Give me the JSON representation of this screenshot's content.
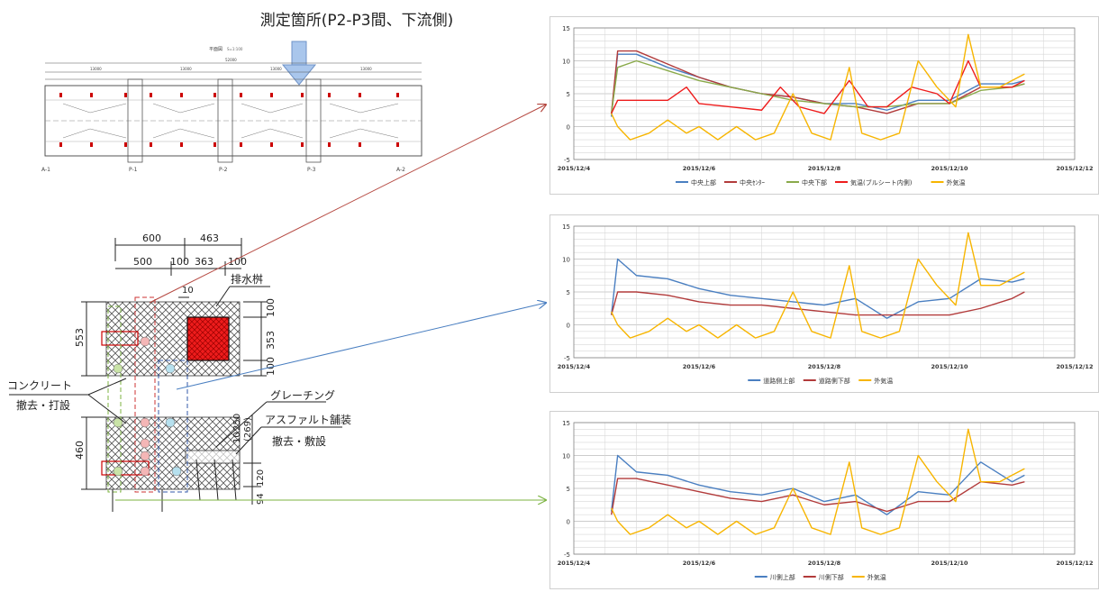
{
  "title": "測定箇所(P2-P3間、下流側)",
  "colors": {
    "blue": "#4a7fc1",
    "darkred": "#b23b3b",
    "green": "#8aaa4a",
    "red": "#ee1c1c",
    "yellow": "#f7b500",
    "arrow_red": "#b3443c",
    "arrow_blue": "#4a7fc1",
    "arrow_green": "#7cb342",
    "grate": "#ee1c1c"
  },
  "plan": {
    "label": "平面図",
    "scale": "S=1:100",
    "support_labels": [
      "A-1",
      "P-1",
      "P-2",
      "P-3",
      "A-2"
    ],
    "span_dims": [
      "13000",
      "13000",
      "13000",
      "13000"
    ],
    "total_dim": "52000"
  },
  "section": {
    "dims_top": [
      "600",
      "463"
    ],
    "dims_mid": [
      "500",
      "100",
      "363",
      "100"
    ],
    "dim_10": "10",
    "dim_553": "553",
    "dims_right": [
      "100",
      "353",
      "100"
    ],
    "dim_460": "460",
    "dims_lower_right": [
      "10",
      "250",
      "(269)",
      "120",
      "94"
    ],
    "label_drain": "排水桝",
    "label_concrete": "コンクリート",
    "label_concrete_sub": "撤去・打設",
    "label_grating": "グレーチング",
    "label_asphalt": "アスファルト舗装",
    "label_asphalt_sub": "撤去・敷設"
  },
  "chart_data": [
    {
      "type": "line",
      "x_ticks": [
        "2015/12/4",
        "2015/12/6",
        "2015/12/8",
        "2015/12/10",
        "2015/12/12"
      ],
      "y_ticks": [
        -5,
        0,
        5,
        10,
        15
      ],
      "ylim": [
        -5,
        15
      ],
      "xlim": [
        4,
        12
      ],
      "grid": true,
      "legend_position": "bottom",
      "series": [
        {
          "name": "中央上部",
          "color": "#4a7fc1",
          "x": [
            4.6,
            4.7,
            5.0,
            5.5,
            6.0,
            6.5,
            7.0,
            7.5,
            8.0,
            8.5,
            9.0,
            9.5,
            10.0,
            10.5,
            11.0,
            11.2
          ],
          "values": [
            1.5,
            11,
            11,
            9,
            7.5,
            6,
            5,
            4.5,
            3.5,
            3.5,
            2.5,
            4,
            4,
            6.5,
            6.5,
            7
          ]
        },
        {
          "name": "中央ｾﾝﾀｰ",
          "color": "#b23b3b",
          "x": [
            4.6,
            4.7,
            5.0,
            5.5,
            6.0,
            6.5,
            7.0,
            7.5,
            8.0,
            8.5,
            9.0,
            9.5,
            10.0,
            10.5,
            11.0,
            11.2
          ],
          "values": [
            2,
            11.5,
            11.5,
            9.5,
            7.5,
            6,
            5,
            4.5,
            3.5,
            3,
            2,
            3.5,
            3.5,
            6,
            6,
            6.5
          ]
        },
        {
          "name": "中央下部",
          "color": "#8aaa4a",
          "x": [
            4.6,
            4.7,
            5.0,
            5.5,
            6.0,
            6.5,
            7.0,
            7.5,
            8.0,
            8.5,
            9.0,
            9.5,
            10.0,
            10.5,
            11.0,
            11.2
          ],
          "values": [
            2,
            9,
            10,
            8.5,
            7,
            6,
            5,
            4,
            3.5,
            3,
            3,
            3.5,
            3.5,
            5.5,
            6,
            6.5
          ]
        },
        {
          "name": "気温(ブルシート内側)",
          "color": "#ee1c1c",
          "x": [
            4.6,
            4.7,
            5.0,
            5.5,
            5.8,
            6.0,
            6.5,
            7.0,
            7.3,
            7.6,
            8.0,
            8.4,
            8.7,
            9.0,
            9.4,
            9.8,
            10.0,
            10.3,
            10.5,
            11.0,
            11.2
          ],
          "values": [
            2,
            4,
            4,
            4,
            6,
            3.5,
            3,
            2.5,
            6,
            3,
            2,
            7,
            3,
            3,
            6,
            5,
            3.5,
            10,
            6,
            6,
            7
          ]
        },
        {
          "name": "外気温",
          "color": "#f7b500",
          "x": [
            4.6,
            4.7,
            4.9,
            5.2,
            5.5,
            5.8,
            6.0,
            6.3,
            6.6,
            6.9,
            7.2,
            7.5,
            7.8,
            8.1,
            8.4,
            8.6,
            8.9,
            9.2,
            9.5,
            9.8,
            10.1,
            10.3,
            10.5,
            10.8,
            11.0,
            11.2
          ],
          "values": [
            2,
            0,
            -2,
            -1,
            1,
            -1,
            0,
            -2,
            0,
            -2,
            -1,
            5,
            -1,
            -2,
            9,
            -1,
            -2,
            -1,
            10,
            6,
            3,
            14,
            6,
            6,
            7,
            8
          ]
        }
      ]
    },
    {
      "type": "line",
      "x_ticks": [
        "2015/12/4",
        "2015/12/6",
        "2015/12/8",
        "2015/12/10",
        "2015/12/12"
      ],
      "y_ticks": [
        -5,
        0,
        5,
        10,
        15
      ],
      "ylim": [
        -5,
        15
      ],
      "xlim": [
        4,
        12
      ],
      "grid": true,
      "legend_position": "bottom",
      "series": [
        {
          "name": "道路側上部",
          "color": "#4a7fc1",
          "x": [
            4.6,
            4.7,
            5.0,
            5.5,
            6.0,
            6.5,
            7.0,
            7.5,
            8.0,
            8.5,
            9.0,
            9.5,
            10.0,
            10.5,
            11.0,
            11.2
          ],
          "values": [
            1.5,
            10,
            7.5,
            7,
            5.5,
            4.5,
            4,
            3.5,
            3,
            4,
            1,
            3.5,
            4,
            7,
            6.5,
            7
          ]
        },
        {
          "name": "道路側下部",
          "color": "#b23b3b",
          "x": [
            4.6,
            4.7,
            5.0,
            5.5,
            6.0,
            6.5,
            7.0,
            7.5,
            8.0,
            8.5,
            9.0,
            9.5,
            10.0,
            10.5,
            11.0,
            11.2
          ],
          "values": [
            1.5,
            5,
            5,
            4.5,
            3.5,
            3,
            3,
            2.5,
            2,
            1.5,
            1.5,
            1.5,
            1.5,
            2.5,
            4,
            5
          ]
        },
        {
          "name": "外気温",
          "color": "#f7b500",
          "x": [
            4.6,
            4.7,
            4.9,
            5.2,
            5.5,
            5.8,
            6.0,
            6.3,
            6.6,
            6.9,
            7.2,
            7.5,
            7.8,
            8.1,
            8.4,
            8.6,
            8.9,
            9.2,
            9.5,
            9.8,
            10.1,
            10.3,
            10.5,
            10.8,
            11.0,
            11.2
          ],
          "values": [
            2,
            0,
            -2,
            -1,
            1,
            -1,
            0,
            -2,
            0,
            -2,
            -1,
            5,
            -1,
            -2,
            9,
            -1,
            -2,
            -1,
            10,
            6,
            3,
            14,
            6,
            6,
            7,
            8
          ]
        }
      ]
    },
    {
      "type": "line",
      "x_ticks": [
        "2015/12/4",
        "2015/12/6",
        "2015/12/8",
        "2015/12/10",
        "2015/12/12"
      ],
      "y_ticks": [
        -5,
        0,
        5,
        10,
        15
      ],
      "ylim": [
        -5,
        15
      ],
      "xlim": [
        4,
        12
      ],
      "grid": true,
      "legend_position": "bottom",
      "series": [
        {
          "name": "川側上部",
          "color": "#4a7fc1",
          "x": [
            4.6,
            4.7,
            5.0,
            5.5,
            6.0,
            6.5,
            7.0,
            7.5,
            8.0,
            8.5,
            9.0,
            9.5,
            10.0,
            10.5,
            11.0,
            11.2
          ],
          "values": [
            1.5,
            10,
            7.5,
            7,
            5.5,
            4.5,
            4,
            5,
            3,
            4,
            1,
            4.5,
            4,
            9,
            6,
            7
          ]
        },
        {
          "name": "川側下部",
          "color": "#b23b3b",
          "x": [
            4.6,
            4.7,
            5.0,
            5.5,
            6.0,
            6.5,
            7.0,
            7.5,
            8.0,
            8.5,
            9.0,
            9.5,
            10.0,
            10.5,
            11.0,
            11.2
          ],
          "values": [
            1,
            6.5,
            6.5,
            5.5,
            4.5,
            3.5,
            3,
            4,
            2.5,
            3,
            1.5,
            3,
            3,
            6,
            5.5,
            6
          ]
        },
        {
          "name": "外気温",
          "color": "#f7b500",
          "x": [
            4.6,
            4.7,
            4.9,
            5.2,
            5.5,
            5.8,
            6.0,
            6.3,
            6.6,
            6.9,
            7.2,
            7.5,
            7.8,
            8.1,
            8.4,
            8.6,
            8.9,
            9.2,
            9.5,
            9.8,
            10.1,
            10.3,
            10.5,
            10.8,
            11.0,
            11.2
          ],
          "values": [
            2,
            0,
            -2,
            -1,
            1,
            -1,
            0,
            -2,
            0,
            -2,
            -1,
            5,
            -1,
            -2,
            9,
            -1,
            -2,
            -1,
            10,
            6,
            3,
            14,
            6,
            6,
            7,
            8
          ]
        }
      ]
    }
  ]
}
